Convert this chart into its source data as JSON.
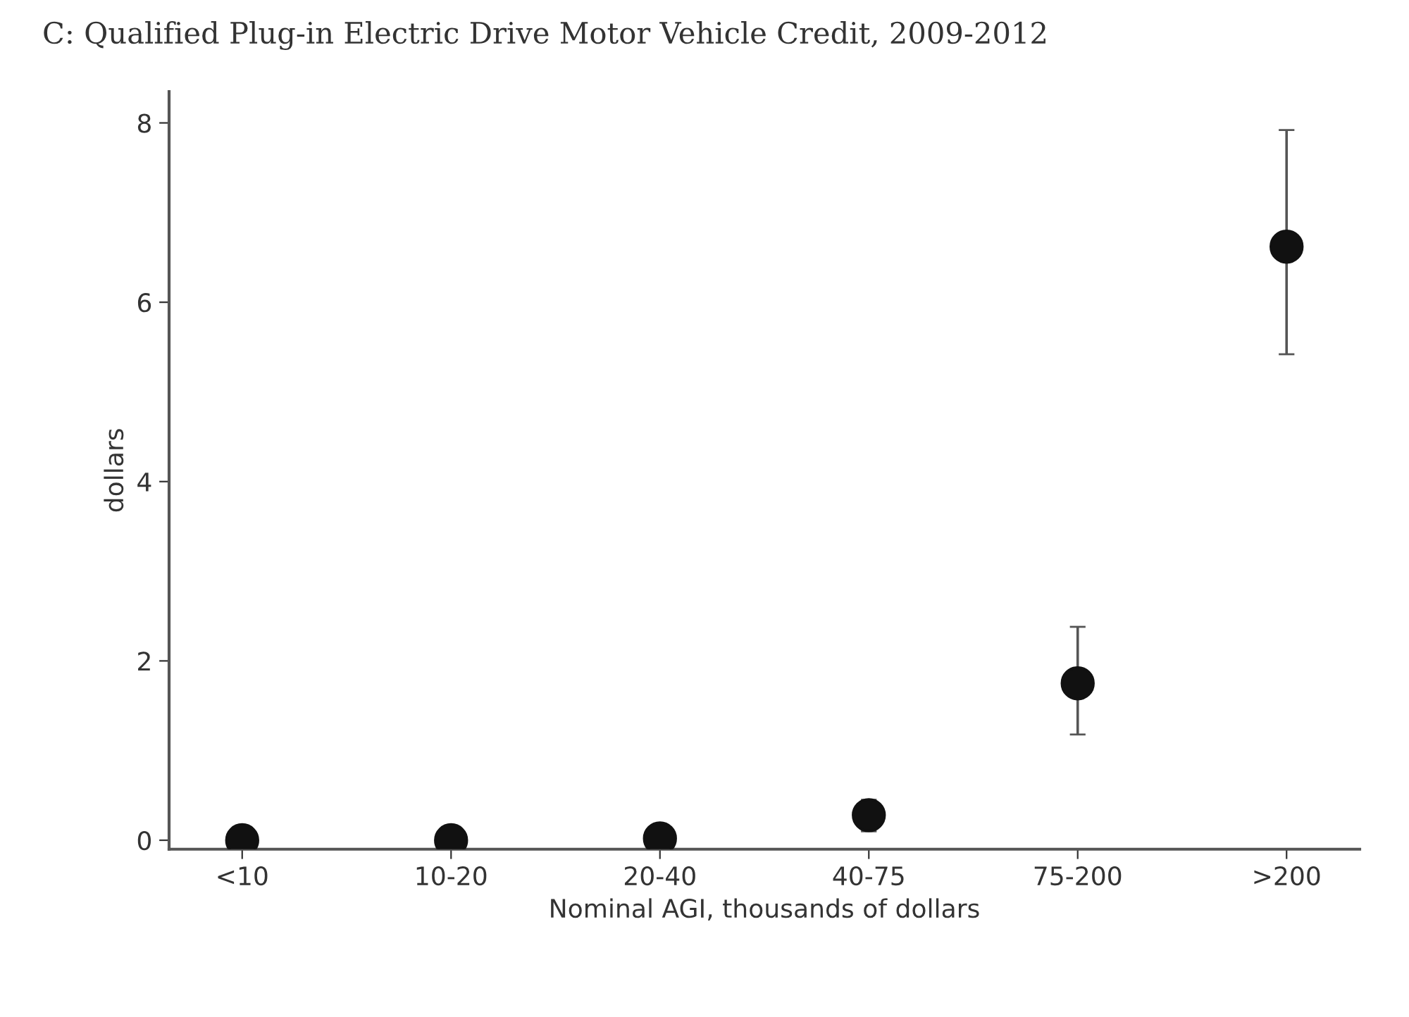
{
  "chart_data": {
    "type": "scatter",
    "title": "C: Qualified Plug-in Electric Drive Motor Vehicle Credit, 2009-2012",
    "xlabel": "Nominal AGI, thousands of dollars",
    "ylabel": "dollars",
    "categories": [
      "<10",
      "10-20",
      "20-40",
      "40-75",
      "75-200",
      ">200"
    ],
    "values": [
      0,
      0,
      0.02,
      0.28,
      1.75,
      6.62
    ],
    "errors": [
      null,
      null,
      null,
      [
        0.1,
        0.45
      ],
      [
        1.18,
        2.38
      ],
      [
        5.42,
        7.92
      ]
    ],
    "color": "#111111",
    "marker": "circle",
    "ylim": [
      -0.1,
      8.35
    ],
    "yticks": [
      0,
      2,
      4,
      6,
      8
    ],
    "grid": false,
    "legend": false
  }
}
